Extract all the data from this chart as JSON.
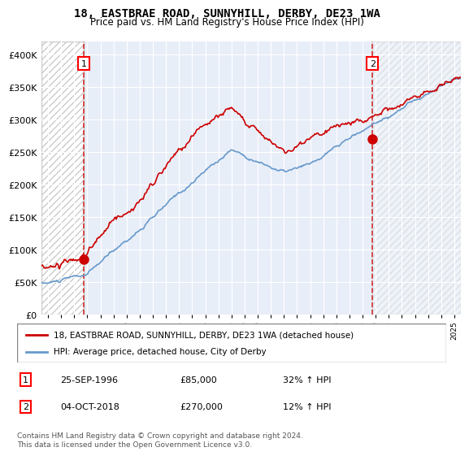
{
  "title": "18, EASTBRAE ROAD, SUNNYHILL, DERBY, DE23 1WA",
  "subtitle": "Price paid vs. HM Land Registry's House Price Index (HPI)",
  "sale1_date": 1996.73,
  "sale1_price": 85000,
  "sale1_label": "1",
  "sale2_date": 2018.76,
  "sale2_price": 270000,
  "sale2_label": "2",
  "legend_line1": "18, EASTBRAE ROAD, SUNNYHILL, DERBY, DE23 1WA (detached house)",
  "legend_line2": "HPI: Average price, detached house, City of Derby",
  "annotation1_date": "25-SEP-1996",
  "annotation1_price": "£85,000",
  "annotation1_pct": "32% ↑ HPI",
  "annotation2_date": "04-OCT-2018",
  "annotation2_price": "£270,000",
  "annotation2_pct": "12% ↑ HPI",
  "footer": "Contains HM Land Registry data © Crown copyright and database right 2024.\nThis data is licensed under the Open Government Licence v3.0.",
  "hpi_color": "#6699cc",
  "price_color": "#cc0000",
  "bg_color": "#e8eef8",
  "hatch_color": "#cccccc",
  "ylim": [
    0,
    420000
  ],
  "xlim_start": 1993.5,
  "xlim_end": 2025.5
}
